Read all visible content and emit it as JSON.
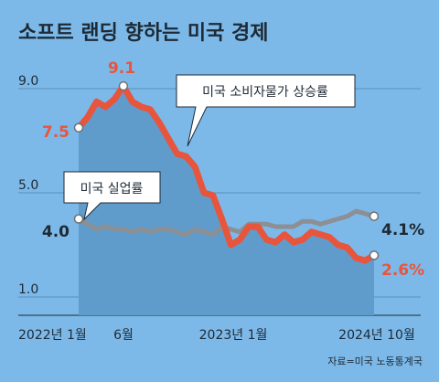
{
  "chart_data": {
    "type": "line",
    "title": "소프트 랜딩 향하는 미국 경제",
    "x_tick_labels": [
      "2022년 1월",
      "6월",
      "2023년 1월",
      "2024년 10월"
    ],
    "yticks": [
      9.0,
      5.0,
      1.0
    ],
    "ytick_labels": [
      "9.0",
      "5.0",
      "1.0"
    ],
    "ylim": [
      1.0,
      9.6
    ],
    "grid": true,
    "n_months": 34,
    "series": [
      {
        "name": "미국 소비자물가 상승률",
        "color": "#e8553d",
        "values": [
          7.5,
          7.9,
          8.5,
          8.3,
          8.6,
          9.1,
          8.5,
          8.3,
          8.2,
          7.7,
          7.1,
          6.5,
          6.4,
          6.0,
          5.0,
          4.9,
          4.0,
          3.0,
          3.2,
          3.7,
          3.7,
          3.2,
          3.1,
          3.4,
          3.1,
          3.2,
          3.5,
          3.4,
          3.3,
          3.0,
          2.9,
          2.5,
          2.4,
          2.6
        ],
        "start_label": "7.5",
        "peak_label": "9.1",
        "end_label": "2.6%"
      },
      {
        "name": "미국 실업률",
        "color": "#8c8f93",
        "values": [
          4.0,
          3.8,
          3.6,
          3.7,
          3.6,
          3.6,
          3.5,
          3.6,
          3.5,
          3.6,
          3.6,
          3.5,
          3.4,
          3.6,
          3.5,
          3.4,
          3.7,
          3.6,
          3.5,
          3.8,
          3.8,
          3.8,
          3.7,
          3.7,
          3.7,
          3.9,
          3.9,
          3.8,
          3.9,
          4.0,
          4.1,
          4.3,
          4.2,
          4.1
        ],
        "start_label": "4.0",
        "end_label": "4.1%"
      }
    ]
  },
  "annotations": {
    "cpi_callout": "미국 소비자물가 상승률",
    "unemp_callout": "미국 실업률"
  },
  "source": "자료=미국 노동통계국",
  "colors": {
    "background": "#7db9e8",
    "area": "#5f9ccc",
    "gridline": "#5a8fba"
  }
}
